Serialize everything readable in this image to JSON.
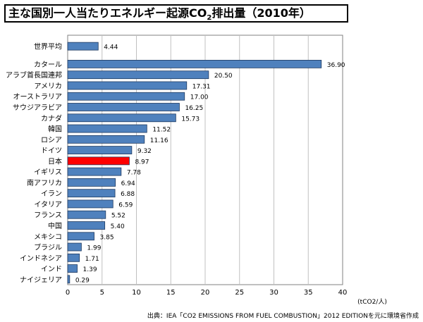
{
  "title": {
    "prefix": "主な国別一人当たりエネルギー起源CO",
    "subscript": "2",
    "suffix": "排出量（2010年）"
  },
  "source_note": "出典：IEA「CO2 EMISSIONS FROM FUEL COMBUSTION」2012 EDITIONを元に環境省作成",
  "colors": {
    "bar_default": "#4F81BD",
    "bar_highlight": "#FF0000",
    "bar_stroke": "#1F3A60",
    "grid": "#C0C0C0"
  },
  "chart_data": {
    "type": "bar",
    "orientation": "horizontal",
    "title": "主な国別一人当たりエネルギー起源CO2排出量（2010年）",
    "xlabel": "(tCO2/人)",
    "xlim": [
      0,
      40
    ],
    "xticks": [
      0,
      5,
      10,
      15,
      20,
      25,
      30,
      35,
      40
    ],
    "grid": true,
    "highlight": "日本",
    "categories": [
      "世界平均",
      "カタール",
      "アラブ首長国連邦",
      "アメリカ",
      "オーストラリア",
      "サウジアラビア",
      "カナダ",
      "韓国",
      "ロシア",
      "ドイツ",
      "日本",
      "イギリス",
      "南アフリカ",
      "イラン",
      "イタリア",
      "フランス",
      "中国",
      "メキシコ",
      "ブラジル",
      "インドネシア",
      "インド",
      "ナイジェリア"
    ],
    "values": [
      4.44,
      36.9,
      20.5,
      17.31,
      17.0,
      16.25,
      15.73,
      11.52,
      11.16,
      9.32,
      8.97,
      7.78,
      6.94,
      6.88,
      6.59,
      5.52,
      5.4,
      3.85,
      1.99,
      1.71,
      1.39,
      0.29
    ],
    "value_labels": [
      "4.44",
      "36.90",
      "20.50",
      "17.31",
      "17.00",
      "16.25",
      "15.73",
      "11.52",
      "11.16",
      "9.32",
      "8.97",
      "7.78",
      "6.94",
      "6.88",
      "6.59",
      "5.52",
      "5.40",
      "3.85",
      "1.99",
      "1.71",
      "1.39",
      "0.29"
    ]
  }
}
